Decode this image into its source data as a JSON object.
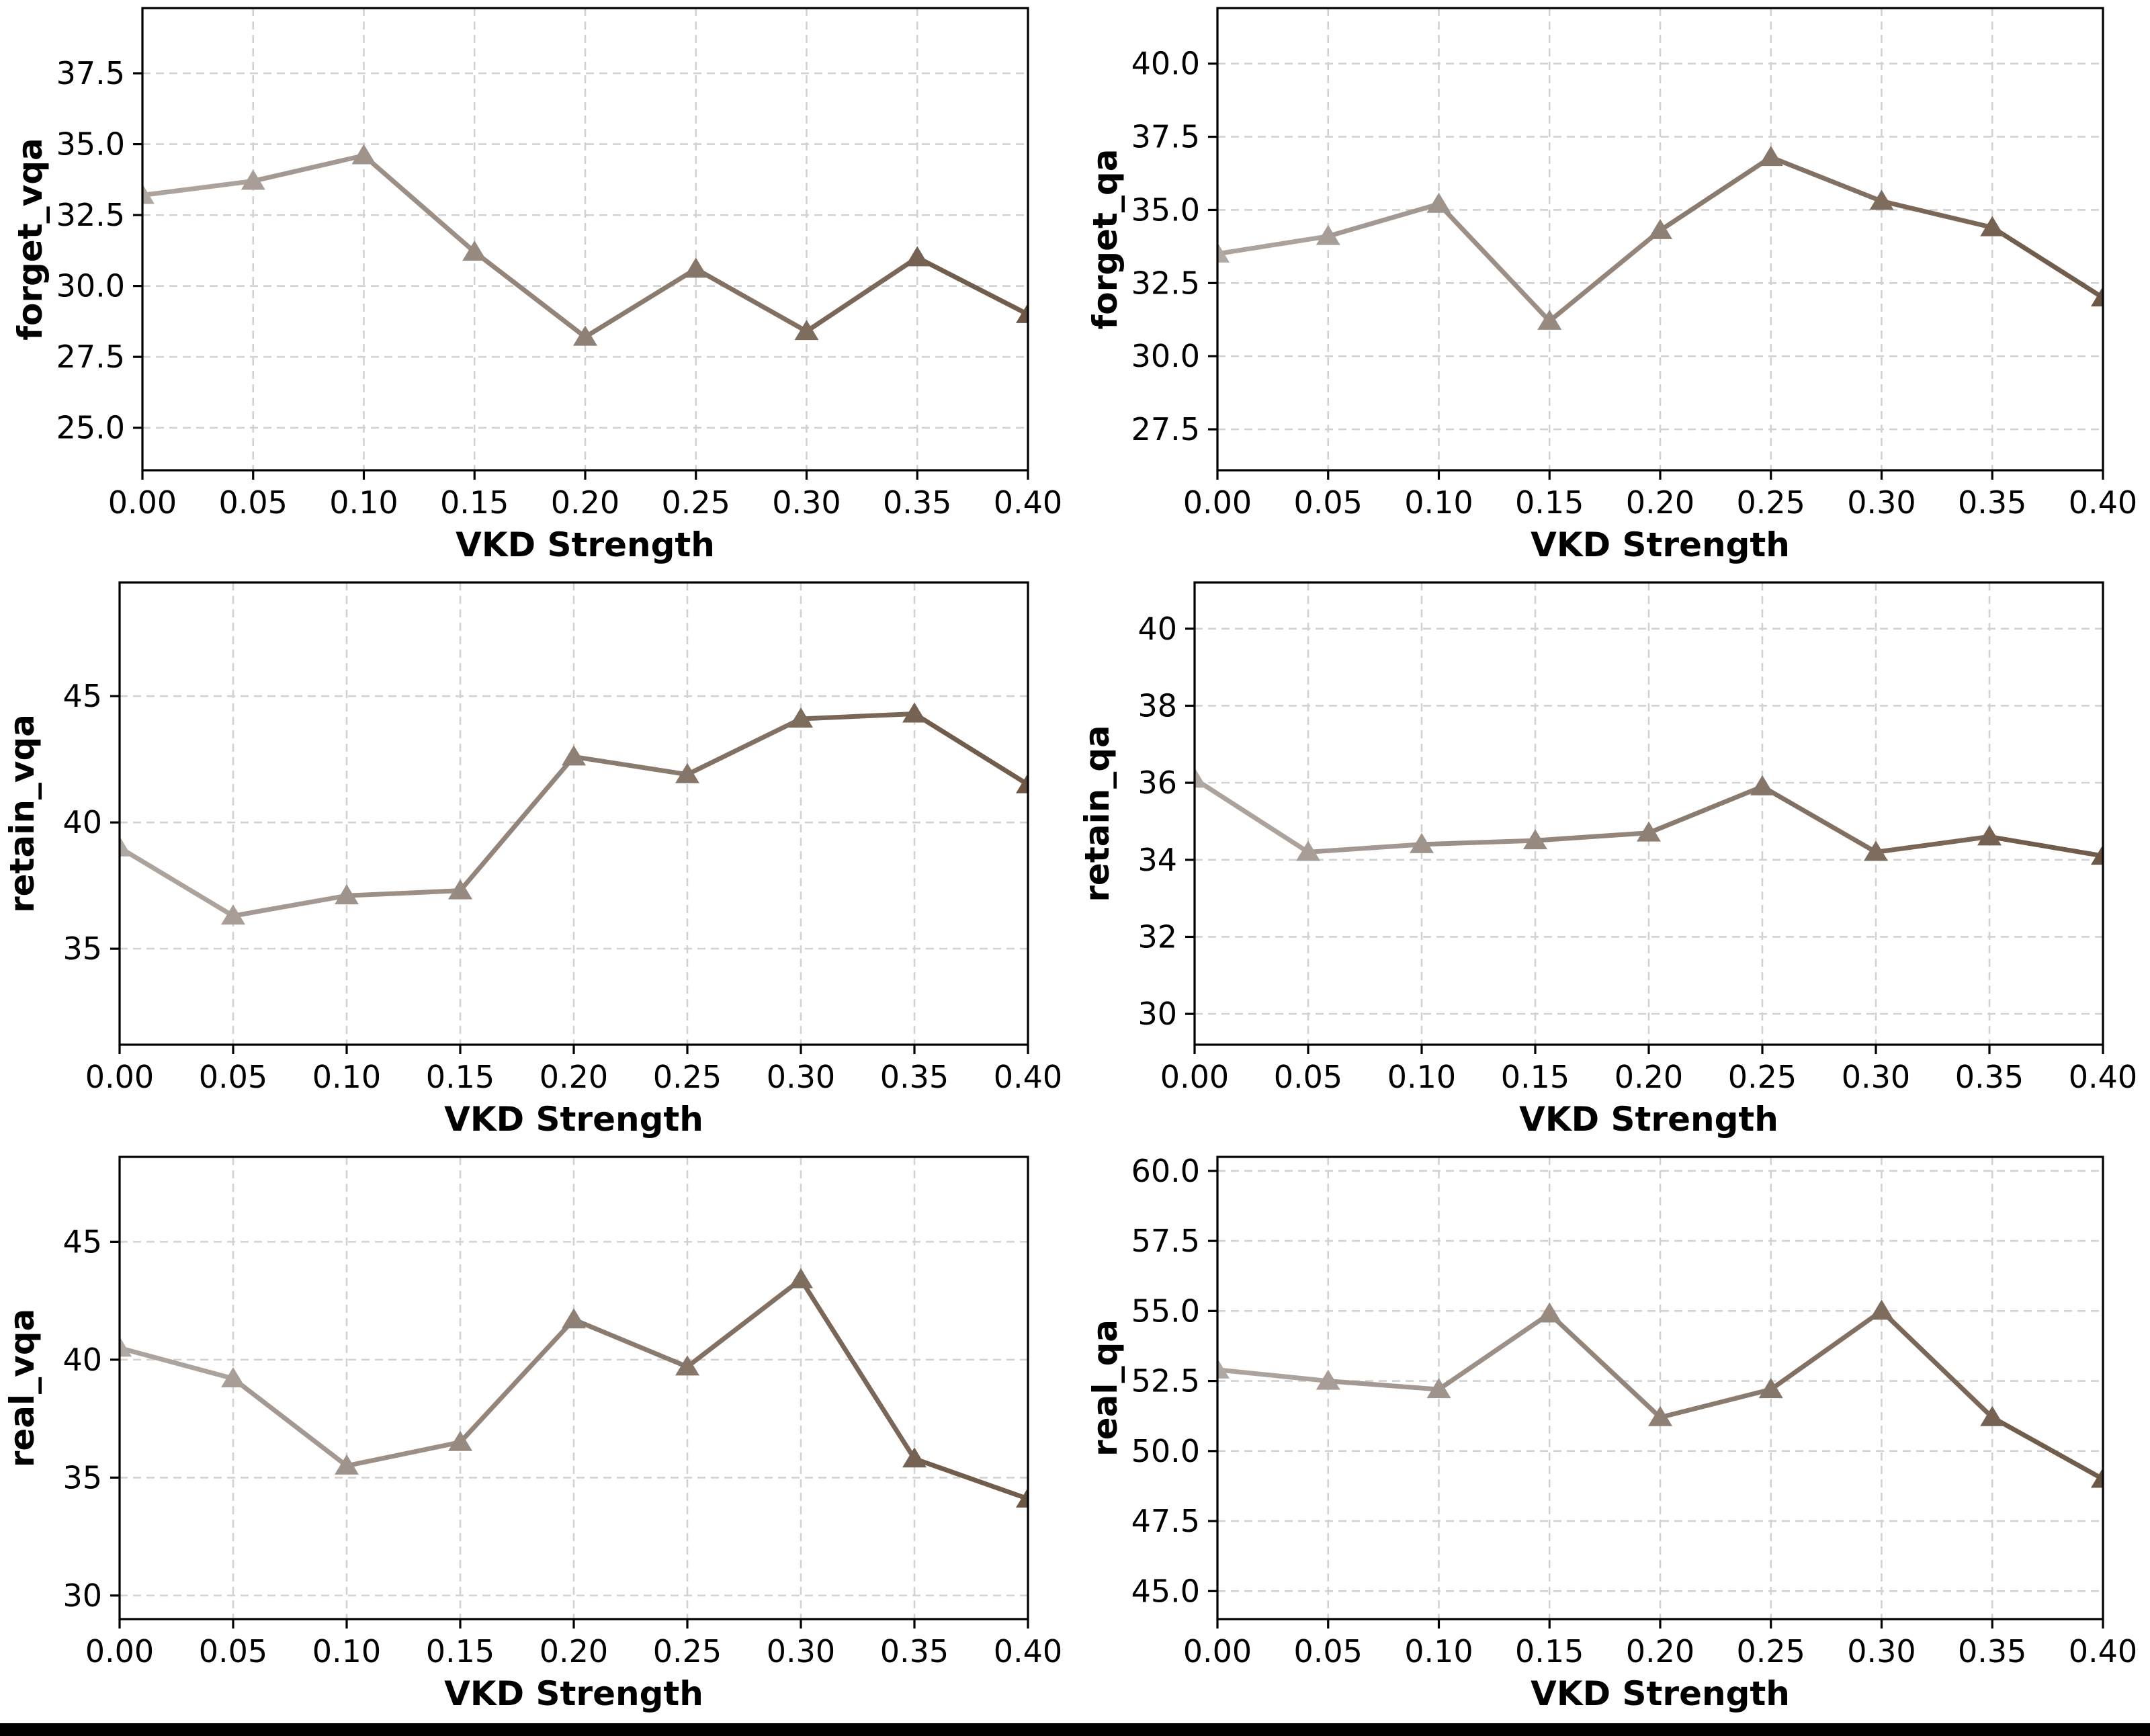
{
  "page": {
    "background": "#ffffff",
    "bottom_bar_color": "#000000"
  },
  "style": {
    "line_color_start": "#b0a8a3",
    "line_color_end": "#6d5846",
    "grid_color": "#d2d2d2",
    "spine_color": "#000000",
    "text_color": "#000000"
  },
  "chart_data": [
    {
      "type": "line",
      "title": "",
      "xlabel": "VKD Strength",
      "ylabel": "forget_vqa",
      "marker": "triangle-up",
      "grid": true,
      "legend": "none",
      "x": [
        0.0,
        0.05,
        0.1,
        0.15,
        0.2,
        0.25,
        0.3,
        0.35,
        0.4
      ],
      "x_tick_labels": [
        "0.00",
        "0.05",
        "0.10",
        "0.15",
        "0.20",
        "0.25",
        "0.30",
        "0.35",
        "0.40"
      ],
      "values": [
        33.2,
        33.7,
        34.6,
        31.2,
        28.2,
        30.6,
        28.4,
        31.0,
        29.0
      ],
      "y_ticks": [
        25.0,
        27.5,
        30.0,
        32.5,
        35.0,
        37.5
      ],
      "y_tick_labels": [
        "25.0",
        "27.5",
        "30.0",
        "32.5",
        "35.0",
        "37.5"
      ],
      "xlim": [
        0.0,
        0.4
      ],
      "ylim": [
        23.5,
        39.8
      ]
    },
    {
      "type": "line",
      "title": "",
      "xlabel": "VKD Strength",
      "ylabel": "forget_qa",
      "marker": "triangle-up",
      "grid": true,
      "legend": "none",
      "x": [
        0.0,
        0.05,
        0.1,
        0.15,
        0.2,
        0.25,
        0.3,
        0.35,
        0.4
      ],
      "x_tick_labels": [
        "0.00",
        "0.05",
        "0.10",
        "0.15",
        "0.20",
        "0.25",
        "0.30",
        "0.35",
        "0.40"
      ],
      "values": [
        33.5,
        34.1,
        35.2,
        31.2,
        34.3,
        36.8,
        35.3,
        34.4,
        32.0
      ],
      "y_ticks": [
        27.5,
        30.0,
        32.5,
        35.0,
        37.5,
        40.0
      ],
      "y_tick_labels": [
        "27.5",
        "30.0",
        "32.5",
        "35.0",
        "37.5",
        "40.0"
      ],
      "xlim": [
        0.0,
        0.4
      ],
      "ylim": [
        26.1,
        41.9
      ]
    },
    {
      "type": "line",
      "title": "",
      "xlabel": "VKD Strength",
      "ylabel": "retain_vqa",
      "marker": "triangle-up",
      "grid": true,
      "legend": "none",
      "x": [
        0.0,
        0.05,
        0.1,
        0.15,
        0.2,
        0.25,
        0.3,
        0.35,
        0.4
      ],
      "x_tick_labels": [
        "0.00",
        "0.05",
        "0.10",
        "0.15",
        "0.20",
        "0.25",
        "0.30",
        "0.35",
        "0.40"
      ],
      "values": [
        39.0,
        36.3,
        37.1,
        37.3,
        42.6,
        41.9,
        44.1,
        44.3,
        41.5
      ],
      "y_ticks": [
        35,
        40,
        45
      ],
      "y_tick_labels": [
        "35",
        "40",
        "45"
      ],
      "xlim": [
        0.0,
        0.4
      ],
      "ylim": [
        31.2,
        49.5
      ]
    },
    {
      "type": "line",
      "title": "",
      "xlabel": "VKD Strength",
      "ylabel": "retain_qa",
      "marker": "triangle-up",
      "grid": true,
      "legend": "none",
      "x": [
        0.0,
        0.05,
        0.1,
        0.15,
        0.2,
        0.25,
        0.3,
        0.35,
        0.4
      ],
      "x_tick_labels": [
        "0.00",
        "0.05",
        "0.10",
        "0.15",
        "0.20",
        "0.25",
        "0.30",
        "0.35",
        "0.40"
      ],
      "values": [
        36.1,
        34.2,
        34.4,
        34.5,
        34.7,
        35.9,
        34.2,
        34.6,
        34.1
      ],
      "y_ticks": [
        30,
        32,
        34,
        36,
        38,
        40
      ],
      "y_tick_labels": [
        "30",
        "32",
        "34",
        "36",
        "38",
        "40"
      ],
      "xlim": [
        0.0,
        0.4
      ],
      "ylim": [
        29.2,
        41.2
      ]
    },
    {
      "type": "line",
      "title": "",
      "xlabel": "VKD Strength",
      "ylabel": "real_vqa",
      "marker": "triangle-up",
      "grid": true,
      "legend": "none",
      "x": [
        0.0,
        0.05,
        0.1,
        0.15,
        0.2,
        0.25,
        0.3,
        0.35,
        0.4
      ],
      "x_tick_labels": [
        "0.00",
        "0.05",
        "0.10",
        "0.15",
        "0.20",
        "0.25",
        "0.30",
        "0.35",
        "0.40"
      ],
      "values": [
        40.5,
        39.2,
        35.5,
        36.5,
        41.7,
        39.7,
        43.4,
        35.8,
        34.1
      ],
      "y_ticks": [
        30,
        35,
        40,
        45
      ],
      "y_tick_labels": [
        "30",
        "35",
        "40",
        "45"
      ],
      "xlim": [
        0.0,
        0.4
      ],
      "ylim": [
        29.0,
        48.6
      ]
    },
    {
      "type": "line",
      "title": "",
      "xlabel": "VKD Strength",
      "ylabel": "real_qa",
      "marker": "triangle-up",
      "grid": true,
      "legend": "none",
      "x": [
        0.0,
        0.05,
        0.1,
        0.15,
        0.2,
        0.25,
        0.3,
        0.35,
        0.4
      ],
      "x_tick_labels": [
        "0.00",
        "0.05",
        "0.10",
        "0.15",
        "0.20",
        "0.25",
        "0.30",
        "0.35",
        "0.40"
      ],
      "values": [
        52.9,
        52.5,
        52.2,
        54.9,
        51.2,
        52.2,
        55.0,
        51.2,
        49.0
      ],
      "y_ticks": [
        45.0,
        47.5,
        50.0,
        52.5,
        55.0,
        57.5,
        60.0
      ],
      "y_tick_labels": [
        "45.0",
        "47.5",
        "50.0",
        "52.5",
        "55.0",
        "57.5",
        "60.0"
      ],
      "xlim": [
        0.0,
        0.4
      ],
      "ylim": [
        44.0,
        60.5
      ]
    }
  ]
}
